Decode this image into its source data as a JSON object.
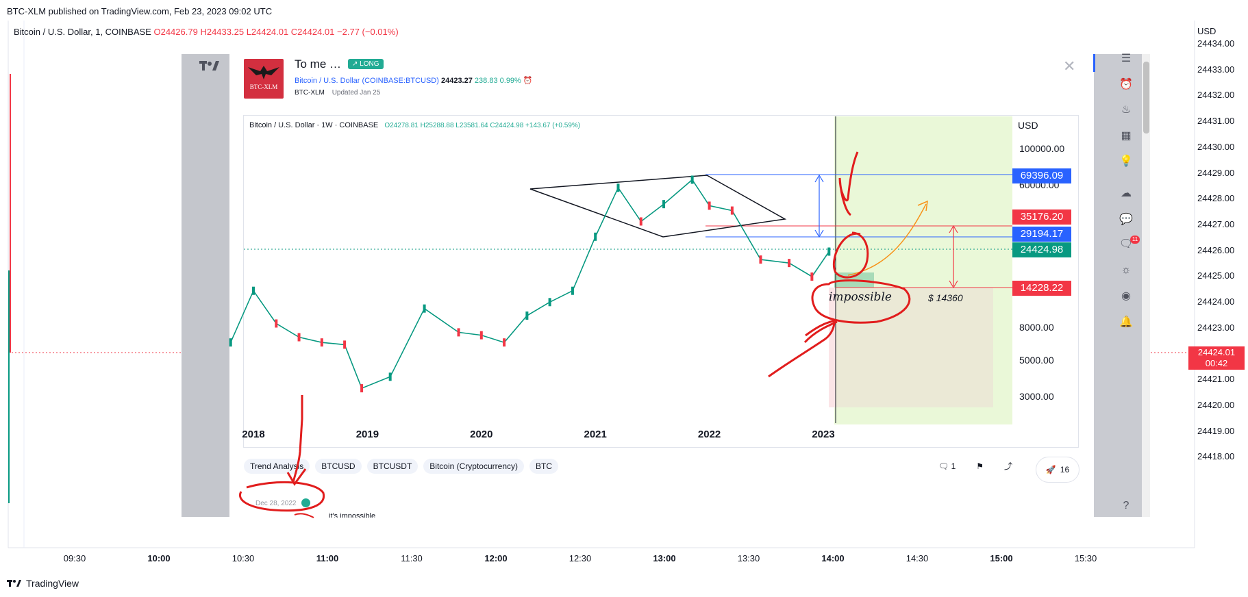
{
  "header": {
    "published": "BTC-XLM published on TradingView.com, Feb 23, 2023 09:02 UTC",
    "legend_symbol": "Bitcoin / U.S. Dollar, 1, COINBASE",
    "legend_o": "O24426.79",
    "legend_h": "H24433.25",
    "legend_l": "L24424.01",
    "legend_c": "C24424.01",
    "legend_chg": "−2.77 (−0.01%)"
  },
  "footer": {
    "brand": "TradingView"
  },
  "outer_chart": {
    "currency": "USD",
    "last_price": "24424.01",
    "countdown": "00:42"
  },
  "card": {
    "title": "To me …",
    "badge": "↗ LONG",
    "logo_text": "BTC-XLM",
    "symbol": "Bitcoin / U.S. Dollar",
    "exchange": "(COINBASE:BTCUSD)",
    "price": "24423.27",
    "change": "238.83",
    "change_pct": "0.99%",
    "author": "BTC-XLM",
    "updated": "Updated Jan 25",
    "inner_legend": "Bitcoin / U.S. Dollar · 1W · COINBASE",
    "inner_ohlc": "O24278.81 H25288.88 L23581.64 C24424.98 +143.67 (+0.59%)",
    "inner_currency": "USD",
    "annotations": {
      "impossible": "impossible",
      "target": "$ 14360"
    },
    "tags": [
      "Trend Analysis",
      "BTCUSD",
      "BTCUSDT",
      "Bitcoin (Cryptocurrency)",
      "BTC"
    ],
    "comments_count": "1",
    "boosts": "16",
    "comment_date": "Dec 28, 2022",
    "comment_text": "it's impossible"
  },
  "icons": {
    "toolbar": [
      "list-icon",
      "alarm-icon",
      "fire-icon",
      "calendar-icon",
      "idea-icon",
      "cloud-icon",
      "chat-icon",
      "notifications-icon",
      "bulb-icon",
      "stream-icon",
      "bell-icon",
      "help-icon"
    ],
    "notification_badge": "11"
  },
  "chart_data": [
    {
      "type": "line",
      "title": "",
      "subtitle": "Bitcoin / U.S. Dollar, 1, COINBASE",
      "y_ticks": [
        "24434.00",
        "24433.00",
        "24432.00",
        "24431.00",
        "24430.00",
        "24429.00",
        "24428.00",
        "24427.00",
        "24426.00",
        "24425.00",
        "24424.00",
        "24423.00",
        "24422.00",
        "24421.00",
        "24420.00",
        "24419.00",
        "24418.00"
      ],
      "x_ticks": [
        "09:30",
        "10:00",
        "10:30",
        "11:00",
        "11:30",
        "12:00",
        "12:30",
        "13:00",
        "13:30",
        "14:00",
        "14:30",
        "15:00",
        "15:30"
      ],
      "x_ticks_bold": [
        "10:00",
        "11:00",
        "12:00",
        "13:00",
        "14:00",
        "15:00"
      ],
      "ylim": [
        24418,
        24434
      ],
      "last_value": 24424.01
    },
    {
      "type": "line",
      "title": "",
      "subtitle": "Bitcoin / U.S. Dollar · 1W · COINBASE",
      "scale": "log",
      "y_ticks": [
        100000,
        60000,
        8000,
        5000,
        3000
      ],
      "x_ticks": [
        "2018",
        "2019",
        "2020",
        "2021",
        "2022",
        "2023"
      ],
      "price_labels": [
        {
          "value": "69396.09",
          "color": "#2962ff"
        },
        {
          "value": "35176.20",
          "color": "#f23645"
        },
        {
          "value": "29194.17",
          "color": "#2962ff"
        },
        {
          "value": "24424.98",
          "color": "#089981"
        },
        {
          "value": "14228.22",
          "color": "#f23645"
        }
      ],
      "x": [
        2017.8,
        2018.0,
        2018.2,
        2018.4,
        2018.6,
        2018.8,
        2018.95,
        2019.2,
        2019.5,
        2019.8,
        2020.0,
        2020.2,
        2020.4,
        2020.6,
        2020.8,
        2021.0,
        2021.2,
        2021.4,
        2021.6,
        2021.85,
        2022.0,
        2022.2,
        2022.45,
        2022.7,
        2022.9,
        2023.05
      ],
      "values": [
        6500,
        13500,
        8500,
        7000,
        6500,
        6300,
        3400,
        4000,
        10500,
        7500,
        7200,
        6500,
        9500,
        11500,
        13500,
        29000,
        58000,
        36000,
        46000,
        65000,
        45000,
        42000,
        21000,
        20000,
        16500,
        23500
      ]
    }
  ]
}
